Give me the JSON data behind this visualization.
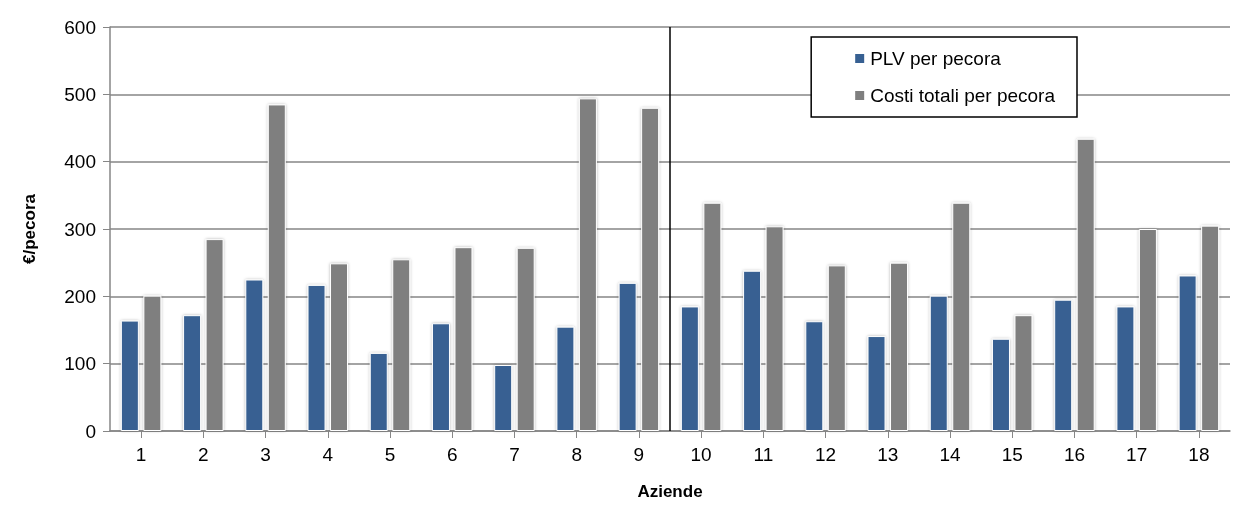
{
  "chart_data": {
    "type": "bar",
    "xlabel": "Aziende",
    "ylabel": "€/pecora",
    "x": [
      1,
      2,
      3,
      4,
      5,
      6,
      7,
      8,
      9,
      10,
      11,
      12,
      13,
      14,
      15,
      16,
      17,
      18
    ],
    "xlim": [
      0.5,
      18.5
    ],
    "xticks": [
      1,
      2,
      3,
      4,
      5,
      6,
      7,
      8,
      9,
      10,
      11,
      12,
      13,
      14,
      15,
      16,
      17,
      18
    ],
    "series": [
      {
        "name": "PLV per pecora",
        "color": "#376092",
        "values": [
          164,
          172,
          225,
          217,
          116,
          160,
          98,
          155,
          220,
          185,
          238,
          163,
          141,
          201,
          137,
          195,
          185,
          231
        ]
      },
      {
        "name": "Costi totali per pecora",
        "color": "#7f7f7f",
        "values": [
          201,
          285,
          485,
          249,
          255,
          273,
          272,
          494,
          480,
          339,
          304,
          246,
          250,
          339,
          172,
          434,
          300,
          305
        ]
      }
    ],
    "ylim": [
      0,
      600
    ],
    "yticks": [
      0,
      100,
      200,
      300,
      400,
      500,
      600
    ],
    "grid": "y",
    "legend": "top right",
    "ref_lines": [
      {
        "axis": "x",
        "value": 9.5,
        "color": "#000000"
      }
    ]
  }
}
